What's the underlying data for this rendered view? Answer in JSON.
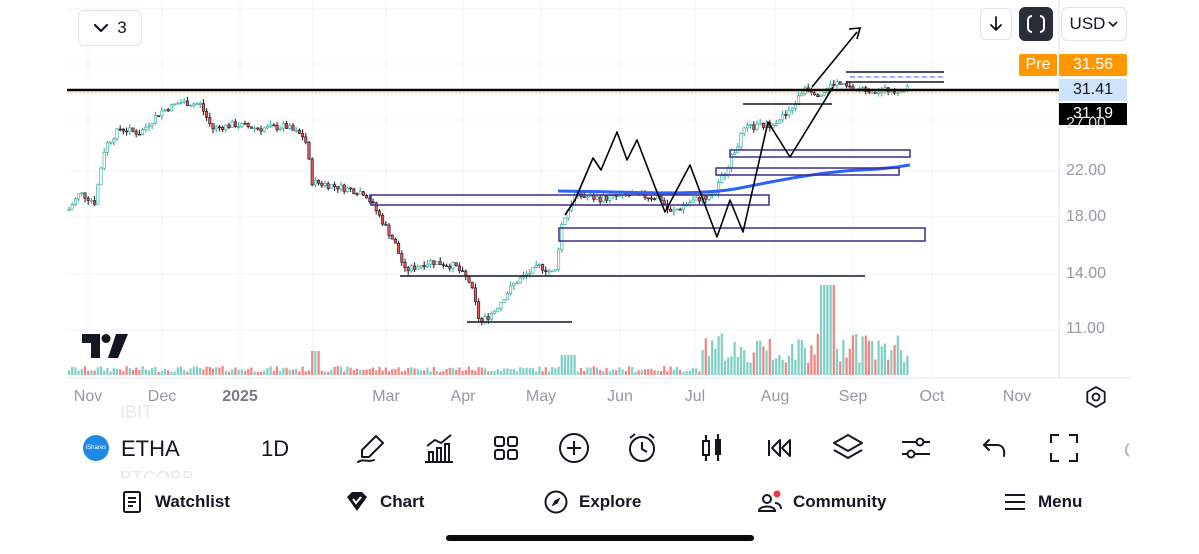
{
  "toolbar_top": {
    "layout_count": "3",
    "currency": "USD",
    "layout_icon": "chevron-down-icon",
    "down_icon": "arrow-down-icon",
    "scale_icon": "auto-scale-icon"
  },
  "price_scale": {
    "pre_tag": "Pre",
    "pre_price": "31.56",
    "current_price": "31.41",
    "line_price": "31.19",
    "ticks": [
      "22.00",
      "18.00",
      "14.00",
      "11.00"
    ],
    "faint_tick": "27.00",
    "colors": {
      "pre": "#ff9800",
      "current": "#cfe4fb",
      "line": "#000000"
    }
  },
  "time_scale": {
    "ticks": [
      "Nov",
      "Dec",
      "2025",
      "Mar",
      "Apr",
      "May",
      "Jun",
      "Jul",
      "Aug",
      "Sep",
      "Oct",
      "Nov"
    ]
  },
  "chart_data": {
    "type": "candlestick",
    "symbol": "ETHA",
    "interval": "1D",
    "ylim": [
      10,
      33
    ],
    "y_scale": "log",
    "up_color": "#26a69a",
    "down_color": "#ef5350",
    "approx_closes": [
      {
        "t": "Nov",
        "v": 18.5
      },
      {
        "t": "Nov",
        "v": 20.5
      },
      {
        "t": "Nov",
        "v": 24.5
      },
      {
        "t": "Dec",
        "v": 26.0
      },
      {
        "t": "Dec",
        "v": 28.5
      },
      {
        "t": "Dec",
        "v": 29.5
      },
      {
        "t": "2025",
        "v": 26.5
      },
      {
        "t": "2025",
        "v": 27.0
      },
      {
        "t": "2025",
        "v": 25.0
      },
      {
        "t": "Feb",
        "v": 21.0
      },
      {
        "t": "Feb",
        "v": 20.5
      },
      {
        "t": "Mar",
        "v": 17.0
      },
      {
        "t": "Mar",
        "v": 14.5
      },
      {
        "t": "Apr",
        "v": 13.5
      },
      {
        "t": "Apr",
        "v": 11.5
      },
      {
        "t": "May",
        "v": 13.5
      },
      {
        "t": "May",
        "v": 18.5
      },
      {
        "t": "Jun",
        "v": 19.5
      },
      {
        "t": "Jun",
        "v": 19.0
      },
      {
        "t": "Jul",
        "v": 19.0
      },
      {
        "t": "Jul",
        "v": 23.0
      },
      {
        "t": "Aug",
        "v": 27.0
      },
      {
        "t": "Aug",
        "v": 31.0
      },
      {
        "t": "Sep",
        "v": 31.5
      },
      {
        "t": "Sep",
        "v": 31.4
      }
    ],
    "moving_average": {
      "color": "#2962ff",
      "points": [
        {
          "t": "Jun",
          "v": 19.8
        },
        {
          "t": "Jul",
          "v": 20.2
        },
        {
          "t": "Aug",
          "v": 21.3
        },
        {
          "t": "Sep",
          "v": 22.3
        }
      ]
    },
    "volume": {
      "up_color": "#26a69a",
      "down_color": "#ef5350"
    },
    "drawings": {
      "horizontal_line_price": "31.19",
      "zones_color": "#3f2a8c"
    }
  },
  "bottom_toolbar": {
    "symbol": "ETHA",
    "symbol_badge": "iShares",
    "interval": "1D",
    "ghost_above": "IBIT",
    "ghost_below": "BTCOBB",
    "tools": [
      "brush-icon",
      "indicators-icon",
      "grid-icon",
      "plus-circle-icon",
      "alarm-icon",
      "candles-icon",
      "replay-icon",
      "layers-icon",
      "settings-sliders-icon",
      "undo-icon",
      "fullscreen-icon"
    ]
  },
  "bottom_nav": {
    "items": [
      {
        "label": "Watchlist",
        "icon": "list-icon"
      },
      {
        "label": "Chart",
        "icon": "chart-icon"
      },
      {
        "label": "Explore",
        "icon": "compass-icon"
      },
      {
        "label": "Community",
        "icon": "people-icon"
      },
      {
        "label": "Menu",
        "icon": "hamburger-icon"
      }
    ],
    "notification_color": "#f23645"
  }
}
